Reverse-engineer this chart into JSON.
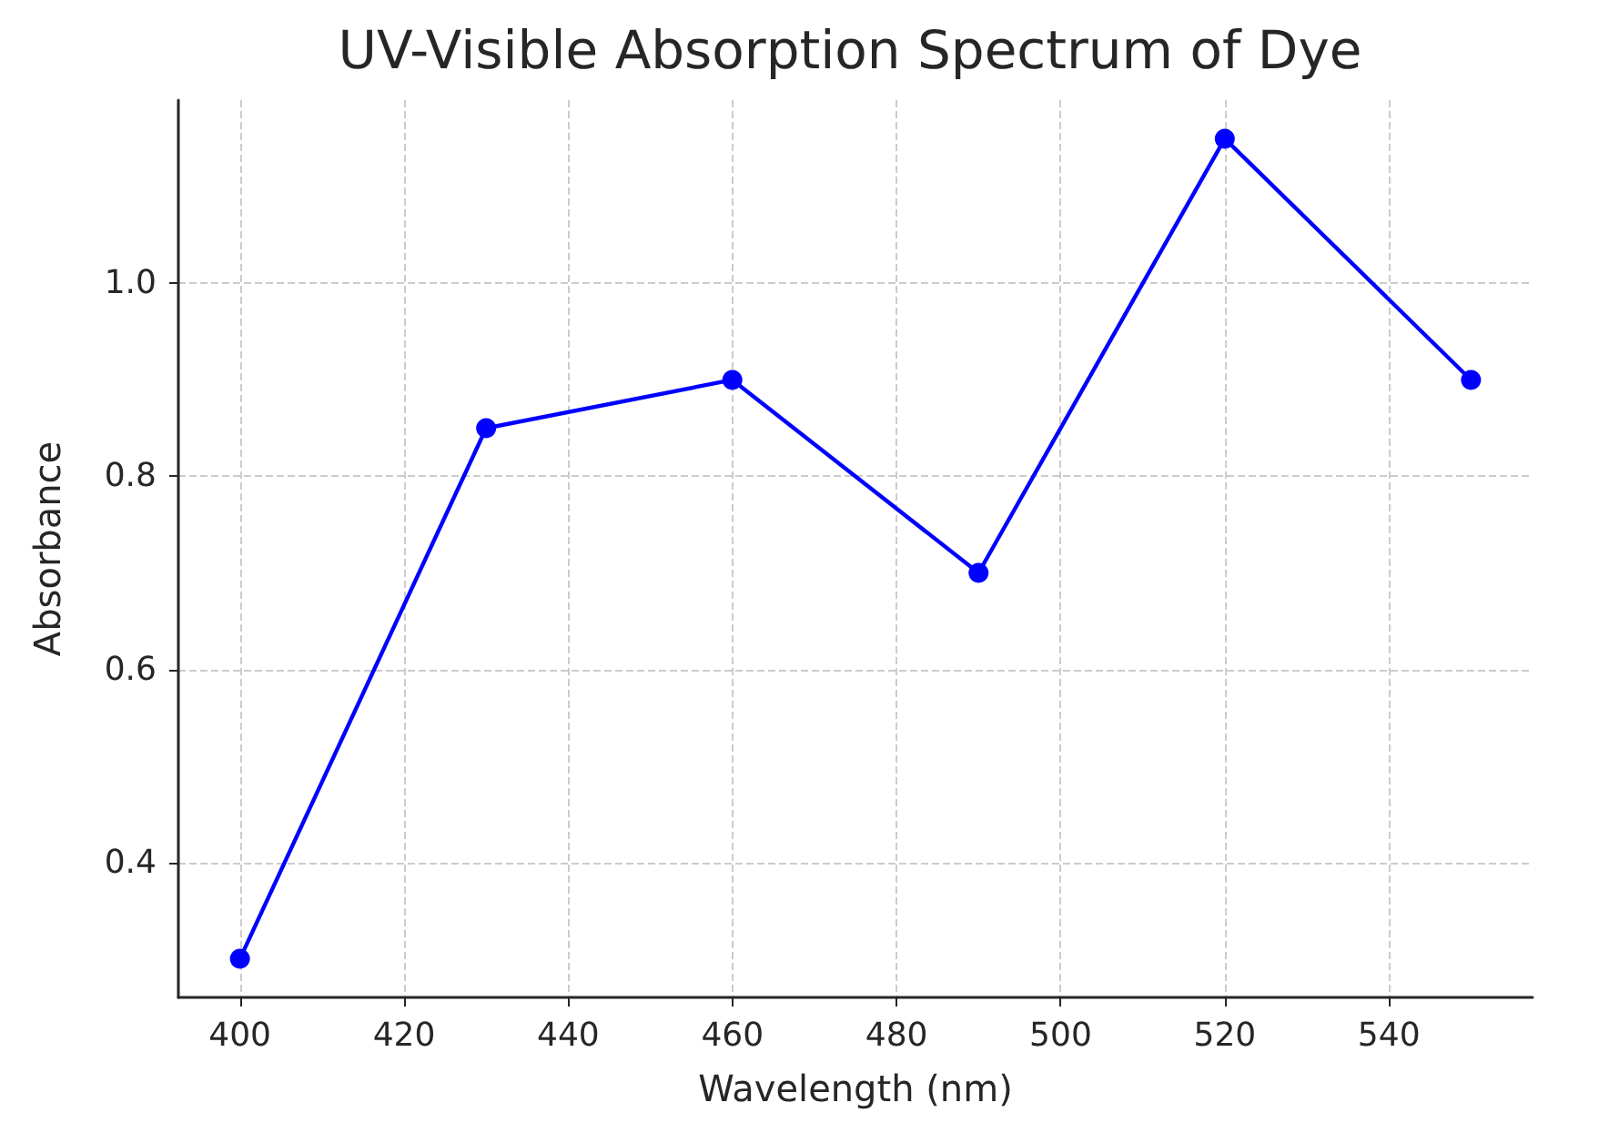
{
  "chart_data": {
    "type": "line",
    "title": "UV-Visible Absorption Spectrum of Dye",
    "xlabel": "Wavelength (nm)",
    "ylabel": "Absorbance",
    "x": [
      400,
      430,
      460,
      490,
      520,
      550
    ],
    "series": [
      {
        "color": "#0000ff",
        "values": [
          0.3,
          0.85,
          0.9,
          0.7,
          1.15,
          0.9
        ]
      }
    ],
    "xlim": [
      392.5,
      557.5
    ],
    "xticks": [
      400,
      420,
      440,
      460,
      480,
      500,
      520,
      540
    ],
    "ylim": [
      0.26,
      1.19
    ],
    "yticks": [
      0.4,
      0.6,
      0.8,
      {
        "value": 1.0,
        "label": "1.0"
      }
    ],
    "grid": true,
    "marker": "circle",
    "line_style": "solid"
  }
}
